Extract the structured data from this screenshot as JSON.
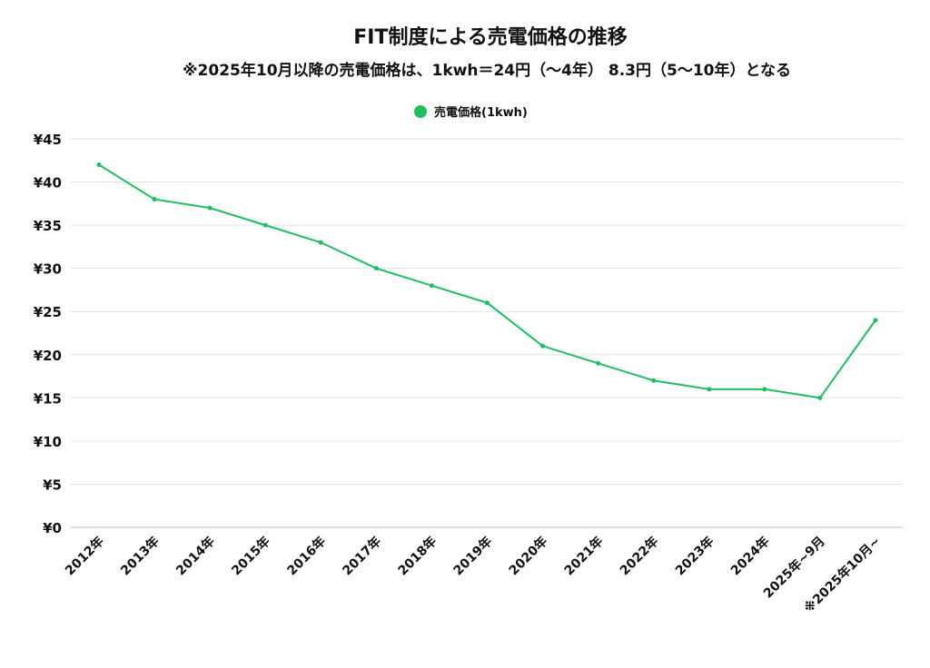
{
  "chart_data": {
    "type": "line",
    "title": "FIT制度による売電価格の推移",
    "subtitle": "※2025年10月以降の売電価格は、1kwh＝24円（～4年） 8.3円（5～10年）となる",
    "xlabel": "",
    "ylabel": "",
    "categories": [
      "2012年",
      "2013年",
      "2014年",
      "2015年",
      "2016年",
      "2017年",
      "2018年",
      "2019年",
      "2020年",
      "2021年",
      "2022年",
      "2023年",
      "2024年",
      "2025年~9月",
      "※2025年10月~"
    ],
    "series": [
      {
        "name": "売電価格(1kwh)",
        "color": "#1dbf5e",
        "values": [
          42,
          38,
          37,
          35,
          33,
          30,
          28,
          26,
          21,
          19,
          17,
          16,
          16,
          15,
          24
        ]
      }
    ],
    "ylim": [
      0,
      45
    ],
    "yticks": [
      0,
      5,
      10,
      15,
      20,
      25,
      30,
      35,
      40,
      45
    ],
    "ytick_labels": [
      "¥0",
      "¥5",
      "¥10",
      "¥15",
      "¥20",
      "¥25",
      "¥30",
      "¥35",
      "¥40",
      "¥45"
    ],
    "grid": true,
    "legend": "top-center"
  }
}
